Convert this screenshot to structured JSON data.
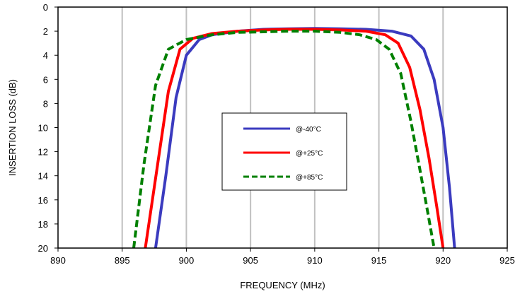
{
  "chart_data": {
    "type": "line",
    "title": "",
    "xlabel": "FREQUENCY (MHz)",
    "ylabel": "INSERTION LOSS (dB)",
    "xlim": [
      890,
      925
    ],
    "ylim": [
      20,
      0
    ],
    "y_inverted": true,
    "x_ticks": [
      890,
      895,
      900,
      905,
      910,
      915,
      920,
      925
    ],
    "y_ticks": [
      0,
      2,
      4,
      6,
      8,
      10,
      12,
      14,
      16,
      18,
      20
    ],
    "grid": "vertical",
    "legend_placement": "center",
    "series": [
      {
        "name": "@-40°C",
        "color": "#3b3bbf",
        "dash": "solid",
        "x": [
          897.6,
          898.4,
          899.2,
          900.0,
          901.0,
          902.0,
          904.0,
          906.0,
          908.0,
          910.0,
          912.0,
          914.0,
          916.0,
          917.5,
          918.5,
          919.3,
          920.0,
          920.5,
          920.9
        ],
        "y": [
          20.0,
          14.0,
          7.5,
          4.0,
          2.7,
          2.3,
          2.0,
          1.85,
          1.8,
          1.78,
          1.8,
          1.85,
          2.0,
          2.4,
          3.5,
          6.0,
          10.0,
          15.0,
          20.0
        ]
      },
      {
        "name": "@+25°C",
        "color": "#ff0000",
        "dash": "solid",
        "x": [
          896.8,
          897.7,
          898.6,
          899.5,
          900.5,
          902.0,
          904.0,
          906.0,
          908.0,
          910.0,
          912.0,
          914.0,
          915.5,
          916.5,
          917.4,
          918.2,
          918.9,
          919.5,
          920.0
        ],
        "y": [
          20.0,
          13.5,
          7.0,
          3.5,
          2.6,
          2.2,
          2.0,
          1.9,
          1.85,
          1.85,
          1.9,
          2.0,
          2.3,
          3.0,
          5.0,
          8.5,
          12.5,
          16.5,
          20.0
        ]
      },
      {
        "name": "@+85°C",
        "color": "#008000",
        "dash": "dashed",
        "x": [
          895.9,
          896.7,
          897.6,
          898.6,
          900.0,
          902.0,
          904.0,
          906.0,
          908.0,
          910.0,
          912.0,
          913.5,
          914.8,
          915.8,
          916.7,
          917.5,
          918.2,
          918.8,
          919.3
        ],
        "y": [
          20.0,
          13.0,
          6.5,
          3.5,
          2.7,
          2.3,
          2.1,
          2.05,
          2.0,
          2.0,
          2.1,
          2.3,
          2.7,
          3.5,
          5.5,
          9.5,
          13.5,
          17.0,
          20.0
        ]
      }
    ]
  }
}
